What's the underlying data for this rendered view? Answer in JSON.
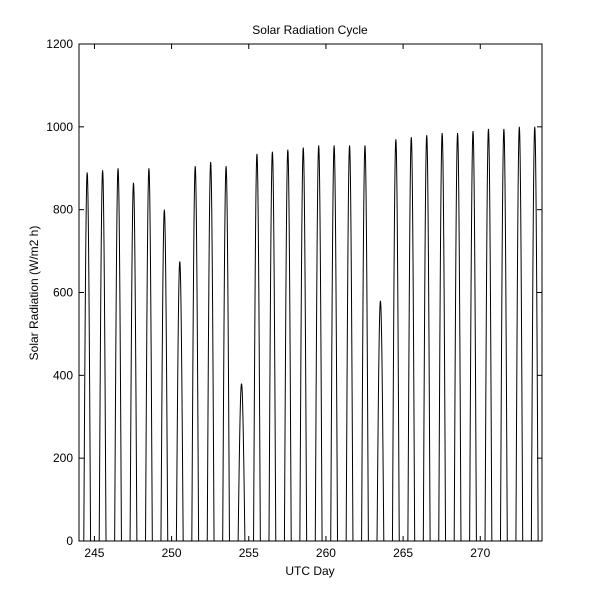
{
  "chart_data": {
    "type": "line",
    "title": "Solar Radiation Cycle",
    "xlabel": "UTC Day",
    "ylabel": "Solar Radiation (W/m2 h)",
    "xlim": [
      244,
      274
    ],
    "ylim": [
      0,
      1200
    ],
    "xticks": [
      245,
      250,
      255,
      260,
      265,
      270
    ],
    "yticks": [
      0,
      200,
      400,
      600,
      800,
      1000,
      1200
    ],
    "grid": false,
    "legend": "none",
    "line_color": "#000000",
    "daily_noon_peaks": [
      {
        "day": 244,
        "peak": 890
      },
      {
        "day": 245,
        "peak": 895
      },
      {
        "day": 246,
        "peak": 900
      },
      {
        "day": 247,
        "peak": 865
      },
      {
        "day": 248,
        "peak": 900
      },
      {
        "day": 249,
        "peak": 800
      },
      {
        "day": 250,
        "peak": 675
      },
      {
        "day": 251,
        "peak": 905
      },
      {
        "day": 252,
        "peak": 915
      },
      {
        "day": 253,
        "peak": 905
      },
      {
        "day": 254,
        "peak": 380
      },
      {
        "day": 255,
        "peak": 935
      },
      {
        "day": 256,
        "peak": 940
      },
      {
        "day": 257,
        "peak": 945
      },
      {
        "day": 258,
        "peak": 950
      },
      {
        "day": 259,
        "peak": 955
      },
      {
        "day": 260,
        "peak": 955
      },
      {
        "day": 261,
        "peak": 955
      },
      {
        "day": 262,
        "peak": 955
      },
      {
        "day": 263,
        "peak": 580
      },
      {
        "day": 264,
        "peak": 970
      },
      {
        "day": 265,
        "peak": 975
      },
      {
        "day": 266,
        "peak": 980
      },
      {
        "day": 267,
        "peak": 985
      },
      {
        "day": 268,
        "peak": 985
      },
      {
        "day": 269,
        "peak": 990
      },
      {
        "day": 270,
        "peak": 995
      },
      {
        "day": 271,
        "peak": 995
      },
      {
        "day": 272,
        "peak": 1000
      },
      {
        "day": 273,
        "peak": 1000
      }
    ],
    "noon_offset_day_fraction": 0.53,
    "daylight_half_width_days": 0.22
  }
}
